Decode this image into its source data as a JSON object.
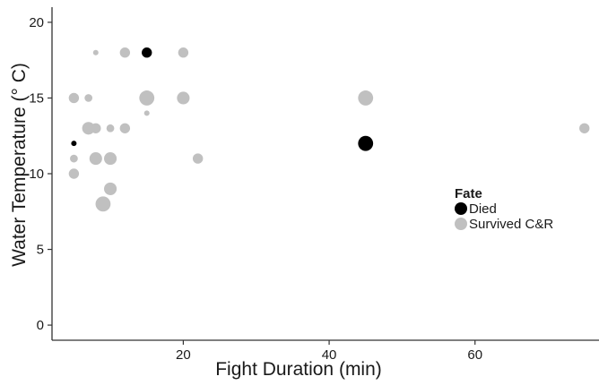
{
  "chart_data": {
    "type": "scatter",
    "xlabel": "Fight Duration (min)",
    "ylabel": "Water Temperature (° C)",
    "xlim": [
      2,
      77
    ],
    "ylim": [
      -1,
      21
    ],
    "x_ticks": [
      20,
      40,
      60
    ],
    "y_ticks": [
      0,
      5,
      10,
      15,
      20
    ],
    "grid": false,
    "legend": {
      "title": "Fate",
      "placement": "right",
      "entries": [
        {
          "label": "Died",
          "color": "#000000"
        },
        {
          "label": "Survived C&R",
          "color": "#c0c0c0"
        }
      ]
    },
    "size_note": "marker size varies by point; relative sizes 1-3",
    "series": [
      {
        "name": "Died",
        "color": "#000000",
        "points": [
          {
            "x": 15,
            "y": 18,
            "size": 2
          },
          {
            "x": 5,
            "y": 12,
            "size": 1
          },
          {
            "x": 45,
            "y": 12,
            "size": 3
          }
        ]
      },
      {
        "name": "Survived C&R",
        "color": "#c0c0c0",
        "points": [
          {
            "x": 8,
            "y": 18,
            "size": 1
          },
          {
            "x": 12,
            "y": 18,
            "size": 2
          },
          {
            "x": 20,
            "y": 18,
            "size": 2
          },
          {
            "x": 5,
            "y": 15,
            "size": 2
          },
          {
            "x": 7,
            "y": 15,
            "size": 1.5
          },
          {
            "x": 15,
            "y": 15,
            "size": 3
          },
          {
            "x": 20,
            "y": 15,
            "size": 2.5
          },
          {
            "x": 45,
            "y": 15,
            "size": 3
          },
          {
            "x": 15,
            "y": 14,
            "size": 1
          },
          {
            "x": 7,
            "y": 13,
            "size": 2.5
          },
          {
            "x": 8,
            "y": 13,
            "size": 2
          },
          {
            "x": 10,
            "y": 13,
            "size": 1.5
          },
          {
            "x": 12,
            "y": 13,
            "size": 2
          },
          {
            "x": 75,
            "y": 13,
            "size": 2
          },
          {
            "x": 5,
            "y": 11,
            "size": 1.5
          },
          {
            "x": 8,
            "y": 11,
            "size": 2.5
          },
          {
            "x": 10,
            "y": 11,
            "size": 2.5
          },
          {
            "x": 22,
            "y": 11,
            "size": 2
          },
          {
            "x": 5,
            "y": 10,
            "size": 2
          },
          {
            "x": 10,
            "y": 9,
            "size": 2.5
          },
          {
            "x": 9,
            "y": 8,
            "size": 3
          }
        ]
      }
    ]
  }
}
